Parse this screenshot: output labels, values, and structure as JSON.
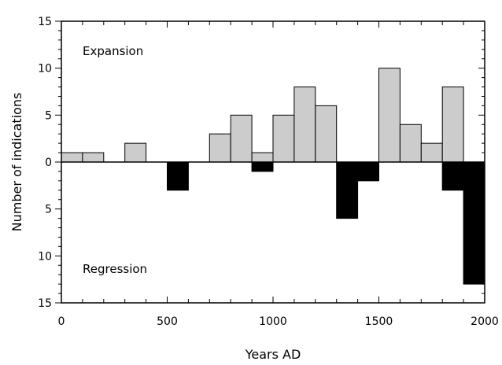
{
  "chart_data": {
    "type": "bar",
    "xlabel": "Years AD",
    "ylabel": "Number of indications",
    "xlim": [
      0,
      2000
    ],
    "ylim": [
      -15,
      15
    ],
    "bin_width": 100,
    "x_ticks": [
      0,
      500,
      1000,
      1500,
      2000
    ],
    "y_ticks": [
      {
        "value": 15,
        "label": "15"
      },
      {
        "value": 10,
        "label": "10"
      },
      {
        "value": 5,
        "label": "5"
      },
      {
        "value": 0,
        "label": "0"
      },
      {
        "value": -5,
        "label": "5"
      },
      {
        "value": -10,
        "label": "10"
      },
      {
        "value": -15,
        "label": "15"
      }
    ],
    "annotations": {
      "expansion": "Expansion",
      "regression": "Regression"
    },
    "grid": false,
    "series": [
      {
        "key": "expansion",
        "color": "#cccccc",
        "data": [
          {
            "x": 0,
            "value": 1
          },
          {
            "x": 100,
            "value": 1
          },
          {
            "x": 300,
            "value": 2
          },
          {
            "x": 700,
            "value": 3
          },
          {
            "x": 800,
            "value": 5
          },
          {
            "x": 900,
            "value": 1
          },
          {
            "x": 1000,
            "value": 5
          },
          {
            "x": 1100,
            "value": 8
          },
          {
            "x": 1200,
            "value": 6
          },
          {
            "x": 1500,
            "value": 10
          },
          {
            "x": 1600,
            "value": 4
          },
          {
            "x": 1700,
            "value": 2
          },
          {
            "x": 1800,
            "value": 8
          }
        ]
      },
      {
        "key": "regression",
        "color": "#000000",
        "data": [
          {
            "x": 500,
            "value": -3
          },
          {
            "x": 900,
            "value": -1
          },
          {
            "x": 1300,
            "value": -6
          },
          {
            "x": 1400,
            "value": -2
          },
          {
            "x": 1800,
            "value": -3
          },
          {
            "x": 1900,
            "value": -13
          }
        ]
      }
    ]
  }
}
